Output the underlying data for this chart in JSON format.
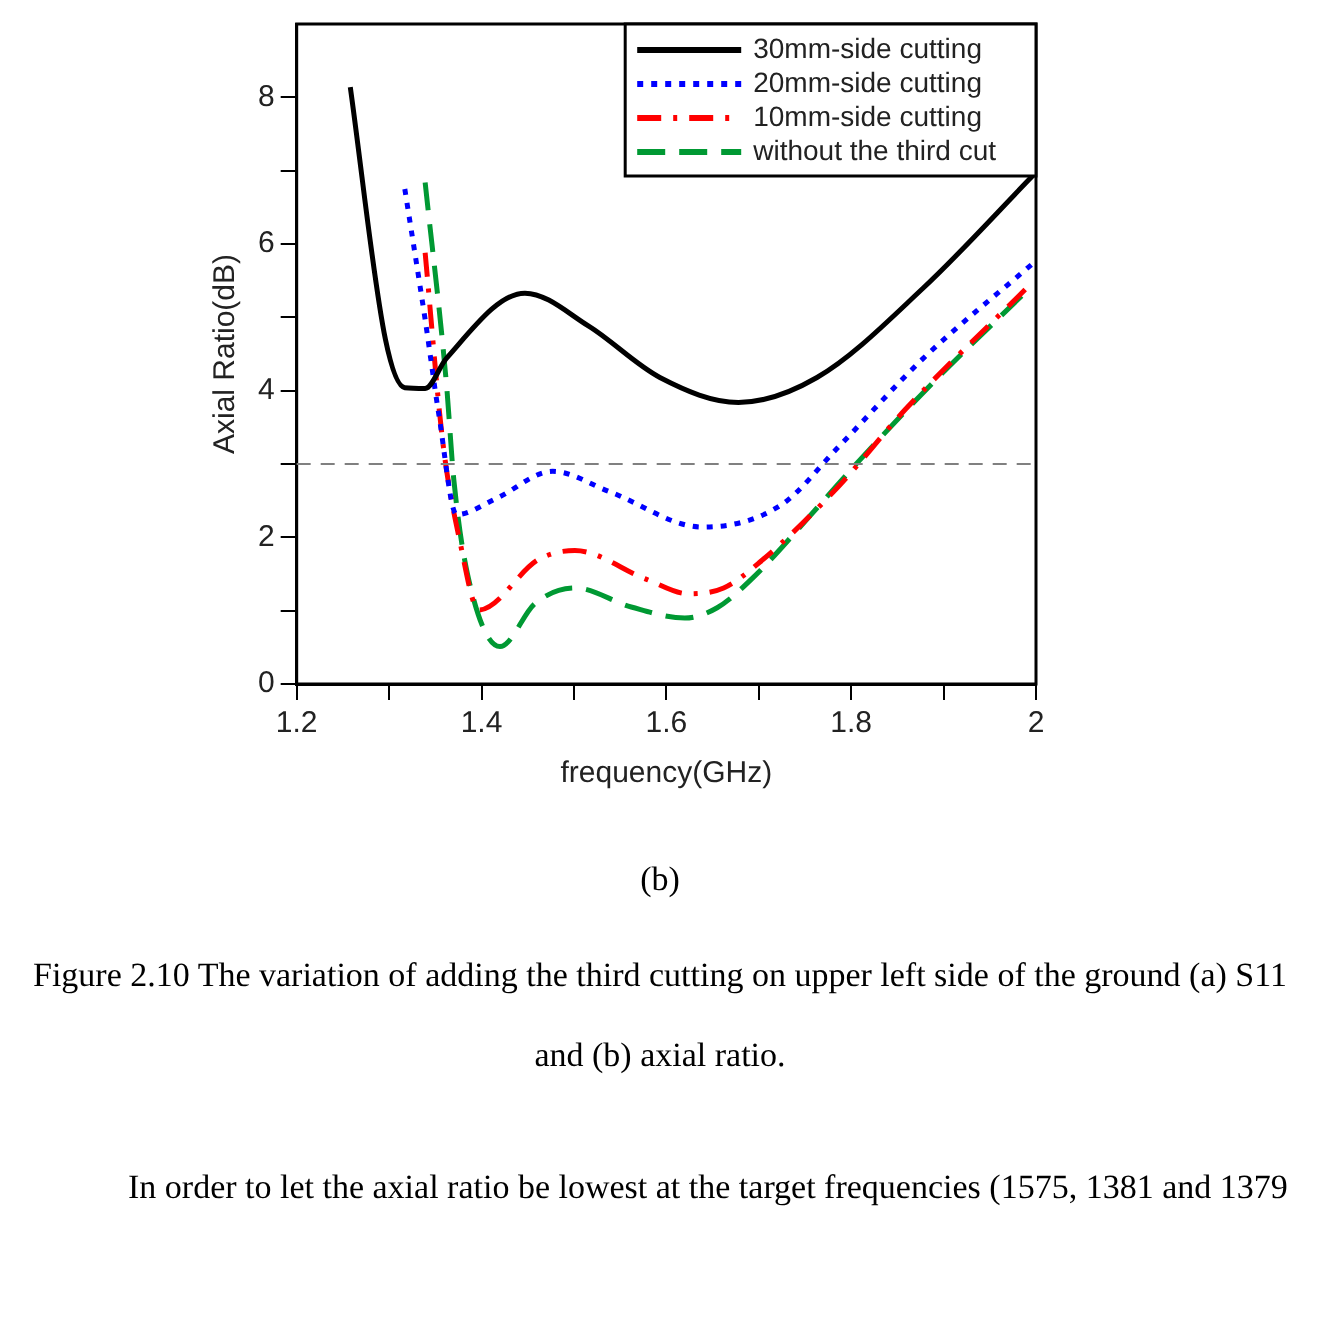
{
  "chart_data": {
    "type": "line",
    "xlabel": "frequency(GHz)",
    "ylabel": "Axial Ratio(dB)",
    "xlim": [
      1.2,
      2.0
    ],
    "xticks": [
      1.2,
      {
        "value": 1.3,
        "label": null
      },
      1.4,
      {
        "value": 1.5,
        "label": null
      },
      1.6,
      {
        "value": 1.7,
        "label": null
      },
      1.8,
      {
        "value": 1.9,
        "label": null
      },
      2
    ],
    "ylim": [
      0,
      9
    ],
    "yticks": [
      0,
      {
        "value": 1,
        "label": null
      },
      2,
      {
        "value": 3,
        "label": null
      },
      4,
      {
        "value": 5,
        "label": null
      },
      6,
      {
        "value": 7,
        "label": null
      },
      8
    ],
    "grid": false,
    "legend": "top right",
    "marker": "none",
    "series": [
      {
        "name": "30mm-side cutting",
        "color": "#000000",
        "line_style": "solid",
        "x": [
          1.258,
          1.296,
          1.317,
          1.339,
          1.362,
          1.447,
          1.516,
          1.593,
          1.678,
          1.763,
          1.878,
          1.998
        ],
        "values": [
          8.14,
          4.7,
          4.04,
          4.03,
          4.44,
          5.33,
          4.88,
          4.18,
          3.84,
          4.18,
          5.4,
          6.95
        ]
      },
      {
        "name": "20mm-side cutting",
        "color": "#0000ff",
        "line_style": "dotted",
        "x": [
          1.317,
          1.339,
          1.354,
          1.373,
          1.416,
          1.477,
          1.539,
          1.639,
          1.724,
          1.786,
          1.878,
          1.998
        ],
        "values": [
          6.75,
          4.97,
          3.66,
          2.31,
          2.53,
          2.9,
          2.62,
          2.14,
          2.44,
          3.23,
          4.44,
          5.75
        ]
      },
      {
        "name": "10mm-side cutting",
        "color": "#ff0000",
        "line_style": "dashdot",
        "x": [
          1.339,
          1.358,
          1.377,
          1.397,
          1.462,
          1.501,
          1.578,
          1.624,
          1.662,
          1.701,
          1.786,
          1.859,
          1.99
        ],
        "values": [
          5.88,
          3.31,
          1.92,
          1.01,
          1.7,
          1.82,
          1.43,
          1.23,
          1.31,
          1.66,
          2.69,
          3.75,
          5.4
        ]
      },
      {
        "name": "without the third cut",
        "color": "#009933",
        "line_style": "dashed",
        "x": [
          1.339,
          1.362,
          1.37,
          1.385,
          1.42,
          1.458,
          1.501,
          1.562,
          1.62,
          1.655,
          1.693,
          1.763,
          1.809,
          1.894,
          1.99
        ],
        "values": [
          6.84,
          4.1,
          2.79,
          1.49,
          0.51,
          1.1,
          1.31,
          1.05,
          0.9,
          1.04,
          1.44,
          2.4,
          3.05,
          4.18,
          5.36
        ]
      }
    ],
    "ref_lines": [
      {
        "axis": "y",
        "value": 3,
        "color": "#808080",
        "line_style": "dashed"
      }
    ],
    "annotations": [
      "(b)",
      "Figure 2.10 The variation of adding the third cutting on upper left side of the ground (a) S11 and (b) axial ratio.",
      "In order to let the axial ratio be lowest at the target frequencies (1575, 1381 and 1379"
    ]
  }
}
